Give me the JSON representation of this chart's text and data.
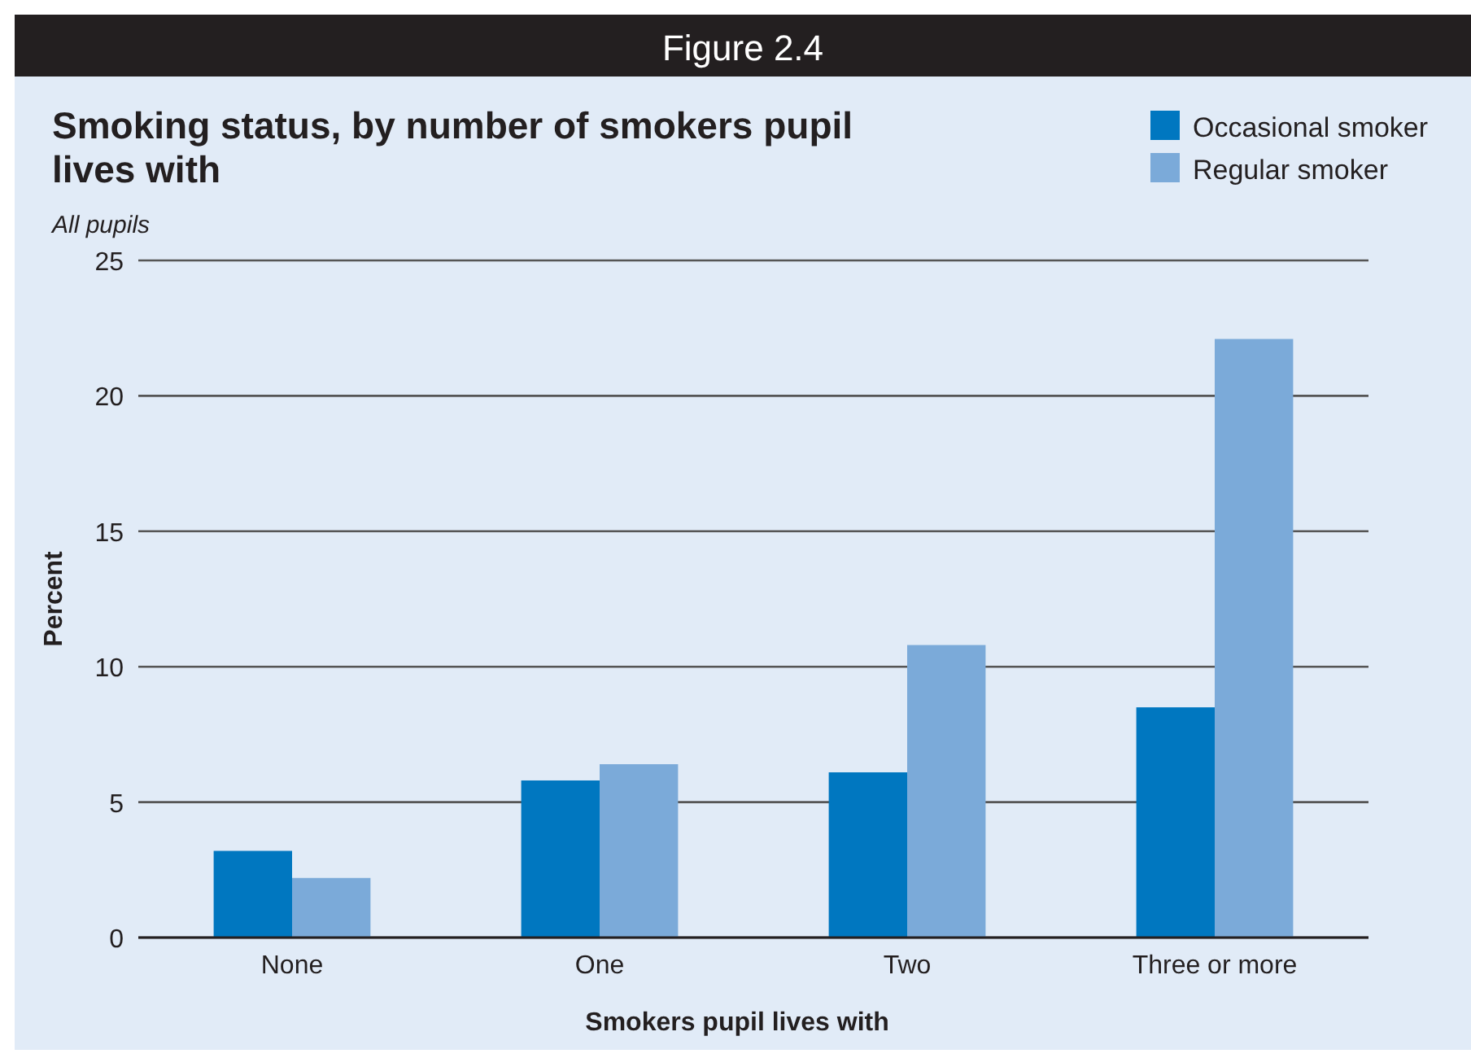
{
  "chart_data": {
    "type": "bar",
    "title": "Smoking status, by number of smokers pupil lives with",
    "subtitle": "All pupils",
    "annotations": [
      "Figure 2.4"
    ],
    "xlabel": "Smokers pupil lives with",
    "ylabel": "Percent",
    "categories": [
      "None",
      "One",
      "Two",
      "Three or more"
    ],
    "series": [
      {
        "name": "Occasional smoker",
        "color": "#0077c0",
        "values": [
          3.2,
          5.8,
          6.1,
          8.5
        ]
      },
      {
        "name": "Regular smoker",
        "color": "#7baad9",
        "values": [
          2.2,
          6.4,
          10.8,
          22.1
        ]
      }
    ],
    "ylim": [
      0,
      25
    ],
    "yticks": [
      0,
      5,
      10,
      15,
      20,
      25
    ],
    "grid": "y",
    "legend": "top right"
  }
}
